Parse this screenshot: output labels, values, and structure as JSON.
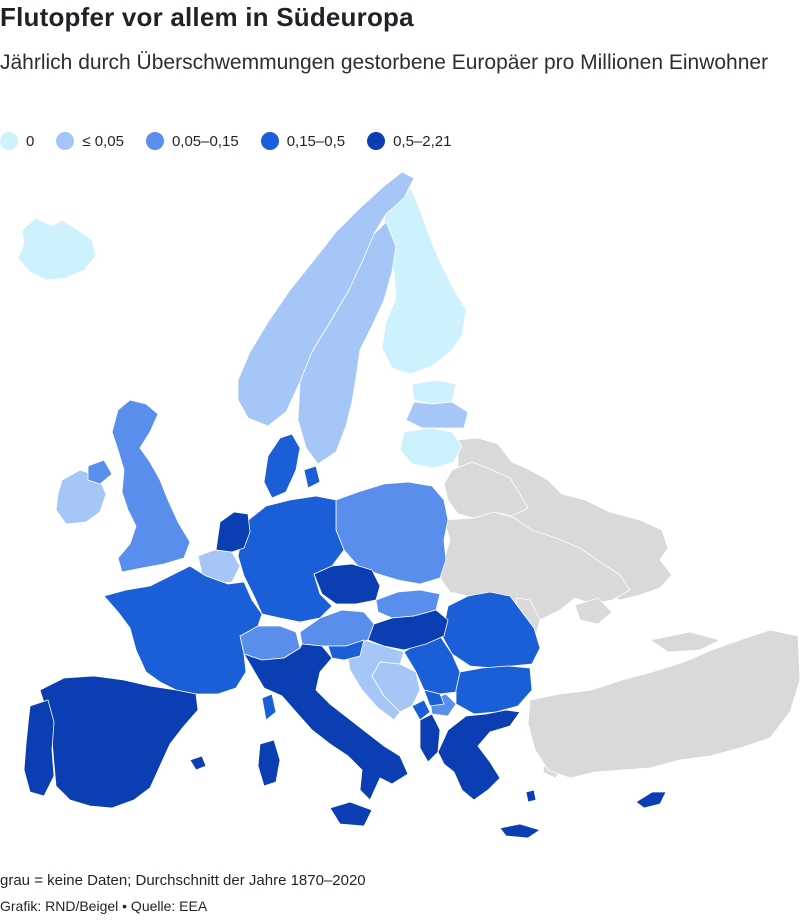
{
  "title": "Flutopfer vor allem in Südeuropa",
  "subtitle": "Jährlich durch Überschwemmungen gestorbene Europäer pro Millionen Einwohner",
  "legend": [
    {
      "label": "0",
      "color": "#cdf1fd"
    },
    {
      "label": "≤ 0,05",
      "color": "#a6c6f7"
    },
    {
      "label": "0,05–0,15",
      "color": "#5a8eec"
    },
    {
      "label": "0,15–0,5",
      "color": "#1a5ed8"
    },
    {
      "label": "0,5–2,21",
      "color": "#0a3eb2"
    }
  ],
  "no_data_color": "#d9d9d9",
  "note": "grau = keine Daten; Durchschnitt der Jahre 1870–2020",
  "source": "Grafik: RND/Beigel • Quelle: EEA",
  "chart_data": {
    "type": "choropleth",
    "bins": [
      "0",
      "≤ 0,05",
      "0,05–0,15",
      "0,15–0,5",
      "0,5–2,21"
    ],
    "regions": [
      {
        "name": "Iceland",
        "bin": 0
      },
      {
        "name": "Finland",
        "bin": 0
      },
      {
        "name": "Estonia",
        "bin": 0
      },
      {
        "name": "Lithuania",
        "bin": 0
      },
      {
        "name": "Norway",
        "bin": 1
      },
      {
        "name": "Sweden",
        "bin": 1
      },
      {
        "name": "Latvia",
        "bin": 1
      },
      {
        "name": "Ireland",
        "bin": 1
      },
      {
        "name": "Belgium",
        "bin": 1
      },
      {
        "name": "Croatia",
        "bin": 1
      },
      {
        "name": "Bosnia and Herzegovina",
        "bin": 1
      },
      {
        "name": "United Kingdom",
        "bin": 2
      },
      {
        "name": "Poland",
        "bin": 2
      },
      {
        "name": "Switzerland",
        "bin": 2
      },
      {
        "name": "Austria",
        "bin": 2
      },
      {
        "name": "Slovakia",
        "bin": 2
      },
      {
        "name": "North Macedonia",
        "bin": 2
      },
      {
        "name": "Denmark",
        "bin": 3
      },
      {
        "name": "Germany",
        "bin": 3
      },
      {
        "name": "France",
        "bin": 3
      },
      {
        "name": "Romania",
        "bin": 3
      },
      {
        "name": "Serbia",
        "bin": 3
      },
      {
        "name": "Bulgaria",
        "bin": 3
      },
      {
        "name": "Slovenia",
        "bin": 3
      },
      {
        "name": "Montenegro",
        "bin": 3
      },
      {
        "name": "Kosovo",
        "bin": 3
      },
      {
        "name": "Netherlands",
        "bin": 4
      },
      {
        "name": "Czechia",
        "bin": 4
      },
      {
        "name": "Hungary",
        "bin": 4
      },
      {
        "name": "Spain",
        "bin": 4
      },
      {
        "name": "Portugal",
        "bin": 4
      },
      {
        "name": "Italy",
        "bin": 4
      },
      {
        "name": "Greece",
        "bin": 4
      },
      {
        "name": "Albania",
        "bin": 4
      },
      {
        "name": "Cyprus",
        "bin": 4
      },
      {
        "name": "Belarus",
        "bin": null
      },
      {
        "name": "Ukraine",
        "bin": null
      },
      {
        "name": "Moldova",
        "bin": null
      },
      {
        "name": "Russia",
        "bin": null
      },
      {
        "name": "Turkey",
        "bin": null
      }
    ]
  }
}
